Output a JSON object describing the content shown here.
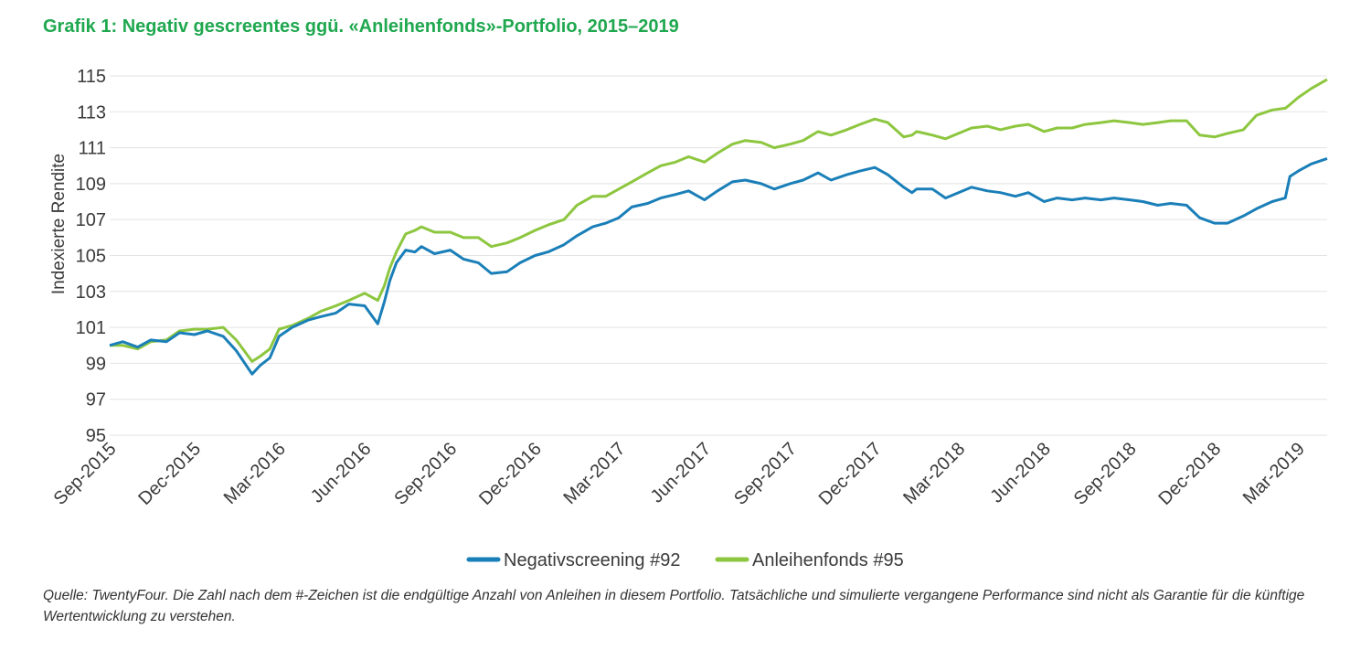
{
  "title": "Grafik 1: Negativ gescreentes ggü. «Anleihenfonds»-Portfolio, 2015–2019",
  "source": "Quelle: TwentyFour. Die Zahl nach dem #-Zeichen ist die endgültige Anzahl von Anleihen in diesem Portfolio. Tatsächliche und simulierte vergangene Performance sind nicht als Garantie für die künftige Wertentwicklung zu verstehen.",
  "chart_data": {
    "type": "line",
    "ylabel": "Indexierte Rendite",
    "xlabel": "",
    "ylim": [
      95,
      115
    ],
    "yticks": [
      95,
      97,
      99,
      101,
      103,
      105,
      107,
      109,
      111,
      113,
      115
    ],
    "xlim": [
      "2015-09",
      "2019-04"
    ],
    "xticks": [
      "Sep-2015",
      "Dec-2015",
      "Mar-2016",
      "Jun-2016",
      "Sep-2016",
      "Dec-2016",
      "Mar-2017",
      "Jun-2017",
      "Sep-2017",
      "Dec-2017",
      "Mar-2018",
      "Jun-2018",
      "Sep-2018",
      "Dec-2018",
      "Mar-2019"
    ],
    "grid": "horizontal",
    "legend": "bottom-center",
    "series": [
      {
        "name": "Negativscreening #92",
        "color": "#1a7fb8",
        "x": [
          "2015-09-01",
          "2015-09-15",
          "2015-10-01",
          "2015-10-15",
          "2015-11-01",
          "2015-11-15",
          "2015-12-01",
          "2015-12-15",
          "2016-01-01",
          "2016-01-15",
          "2016-02-01",
          "2016-02-10",
          "2016-02-20",
          "2016-03-01",
          "2016-03-15",
          "2016-04-01",
          "2016-04-15",
          "2016-05-01",
          "2016-05-15",
          "2016-06-01",
          "2016-06-15",
          "2016-06-22",
          "2016-06-28",
          "2016-07-05",
          "2016-07-15",
          "2016-07-25",
          "2016-08-01",
          "2016-08-15",
          "2016-09-01",
          "2016-09-15",
          "2016-10-01",
          "2016-10-15",
          "2016-11-01",
          "2016-11-15",
          "2016-12-01",
          "2016-12-15",
          "2017-01-01",
          "2017-01-15",
          "2017-02-01",
          "2017-02-15",
          "2017-03-01",
          "2017-03-15",
          "2017-04-01",
          "2017-04-15",
          "2017-05-01",
          "2017-05-15",
          "2017-06-01",
          "2017-06-15",
          "2017-07-01",
          "2017-07-15",
          "2017-08-01",
          "2017-08-15",
          "2017-09-01",
          "2017-09-15",
          "2017-10-01",
          "2017-10-15",
          "2017-11-01",
          "2017-11-15",
          "2017-12-01",
          "2017-12-15",
          "2018-01-01",
          "2018-01-10",
          "2018-01-15",
          "2018-02-01",
          "2018-02-15",
          "2018-03-01",
          "2018-03-15",
          "2018-04-01",
          "2018-04-15",
          "2018-05-01",
          "2018-05-15",
          "2018-06-01",
          "2018-06-15",
          "2018-07-01",
          "2018-07-15",
          "2018-08-01",
          "2018-08-15",
          "2018-09-01",
          "2018-09-15",
          "2018-10-01",
          "2018-10-15",
          "2018-11-01",
          "2018-11-15",
          "2018-12-01",
          "2018-12-15",
          "2019-01-01",
          "2019-01-15",
          "2019-02-01",
          "2019-02-15",
          "2019-02-20",
          "2019-03-01",
          "2019-03-15",
          "2019-04-01"
        ],
        "values": [
          100.0,
          100.2,
          99.9,
          100.3,
          100.2,
          100.7,
          100.6,
          100.8,
          100.5,
          99.7,
          98.4,
          98.9,
          99.3,
          100.5,
          101.0,
          101.4,
          101.6,
          101.8,
          102.3,
          102.2,
          101.2,
          102.4,
          103.6,
          104.6,
          105.3,
          105.2,
          105.5,
          105.1,
          105.3,
          104.8,
          104.6,
          104.0,
          104.1,
          104.6,
          105.0,
          105.2,
          105.6,
          106.1,
          106.6,
          106.8,
          107.1,
          107.7,
          107.9,
          108.2,
          108.4,
          108.6,
          108.1,
          108.6,
          109.1,
          109.2,
          109.0,
          108.7,
          109.0,
          109.2,
          109.6,
          109.2,
          109.5,
          109.7,
          109.9,
          109.5,
          108.8,
          108.5,
          108.7,
          108.7,
          108.2,
          108.5,
          108.8,
          108.6,
          108.5,
          108.3,
          108.5,
          108.0,
          108.2,
          108.1,
          108.2,
          108.1,
          108.2,
          108.1,
          108.0,
          107.8,
          107.9,
          107.8,
          107.1,
          106.8,
          106.8,
          107.2,
          107.6,
          108.0,
          108.2,
          109.4,
          109.7,
          110.1,
          110.4
        ]
      },
      {
        "name": "Anleihenfonds #95",
        "color": "#8dc63f",
        "x": [
          "2015-09-01",
          "2015-09-15",
          "2015-10-01",
          "2015-10-15",
          "2015-11-01",
          "2015-11-15",
          "2015-12-01",
          "2015-12-15",
          "2016-01-01",
          "2016-01-15",
          "2016-02-01",
          "2016-02-10",
          "2016-02-20",
          "2016-03-01",
          "2016-03-15",
          "2016-04-01",
          "2016-04-15",
          "2016-05-01",
          "2016-05-15",
          "2016-06-01",
          "2016-06-15",
          "2016-06-22",
          "2016-06-28",
          "2016-07-05",
          "2016-07-15",
          "2016-07-25",
          "2016-08-01",
          "2016-08-15",
          "2016-09-01",
          "2016-09-15",
          "2016-10-01",
          "2016-10-15",
          "2016-11-01",
          "2016-11-15",
          "2016-12-01",
          "2016-12-15",
          "2017-01-01",
          "2017-01-15",
          "2017-02-01",
          "2017-02-15",
          "2017-03-01",
          "2017-03-15",
          "2017-04-01",
          "2017-04-15",
          "2017-05-01",
          "2017-05-15",
          "2017-06-01",
          "2017-06-15",
          "2017-07-01",
          "2017-07-15",
          "2017-08-01",
          "2017-08-15",
          "2017-09-01",
          "2017-09-15",
          "2017-10-01",
          "2017-10-15",
          "2017-11-01",
          "2017-11-15",
          "2017-12-01",
          "2017-12-15",
          "2018-01-01",
          "2018-01-10",
          "2018-01-15",
          "2018-02-01",
          "2018-02-15",
          "2018-03-01",
          "2018-03-15",
          "2018-04-01",
          "2018-04-15",
          "2018-05-01",
          "2018-05-15",
          "2018-06-01",
          "2018-06-15",
          "2018-07-01",
          "2018-07-15",
          "2018-08-01",
          "2018-08-15",
          "2018-09-01",
          "2018-09-15",
          "2018-10-01",
          "2018-10-15",
          "2018-11-01",
          "2018-11-15",
          "2018-12-01",
          "2018-12-15",
          "2019-01-01",
          "2019-01-15",
          "2019-02-01",
          "2019-02-15",
          "2019-02-20",
          "2019-03-01",
          "2019-03-15",
          "2019-04-01"
        ],
        "values": [
          100.0,
          100.0,
          99.8,
          100.2,
          100.3,
          100.8,
          100.9,
          100.9,
          101.0,
          100.3,
          99.1,
          99.4,
          99.8,
          100.9,
          101.1,
          101.5,
          101.9,
          102.2,
          102.5,
          102.9,
          102.5,
          103.3,
          104.3,
          105.2,
          106.2,
          106.4,
          106.6,
          106.3,
          106.3,
          106.0,
          106.0,
          105.5,
          105.7,
          106.0,
          106.4,
          106.7,
          107.0,
          107.8,
          108.3,
          108.3,
          108.7,
          109.1,
          109.6,
          110.0,
          110.2,
          110.5,
          110.2,
          110.7,
          111.2,
          111.4,
          111.3,
          111.0,
          111.2,
          111.4,
          111.9,
          111.7,
          112.0,
          112.3,
          112.6,
          112.4,
          111.6,
          111.7,
          111.9,
          111.7,
          111.5,
          111.8,
          112.1,
          112.2,
          112.0,
          112.2,
          112.3,
          111.9,
          112.1,
          112.1,
          112.3,
          112.4,
          112.5,
          112.4,
          112.3,
          112.4,
          112.5,
          112.5,
          111.7,
          111.6,
          111.8,
          112.0,
          112.8,
          113.1,
          113.2,
          113.4,
          113.8,
          114.3,
          114.8
        ]
      }
    ]
  }
}
